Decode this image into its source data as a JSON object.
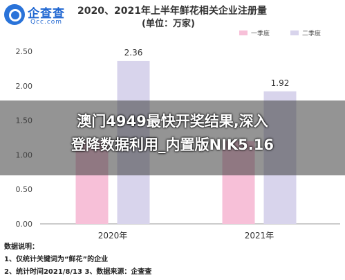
{
  "header": {
    "logo_cn": "企查查",
    "logo_en": "Qcc.com",
    "title": "2020、2021年上半年鲜花相关企业注册量",
    "subtitle": "(单位：万家)"
  },
  "chart_data": {
    "type": "bar",
    "categories": [
      "2020年",
      "2021年"
    ],
    "series": [
      {
        "name": "一季度",
        "values": [
          1.2,
          1.2
        ],
        "color": "#f7c0d8"
      },
      {
        "name": "二季度",
        "values": [
          2.36,
          1.92
        ],
        "color": "#d8d4ec"
      }
    ],
    "data_labels": [
      "2.36",
      "1.92"
    ],
    "ylim": [
      0,
      2.5
    ],
    "yticks": [
      "0.00",
      "0.50",
      "1.00",
      "1.50",
      "2.00",
      "2.50"
    ],
    "grid": false,
    "legend_position": "top-right"
  },
  "notes": {
    "heading": "数据说明：",
    "line1": "1、仅统计关键词为“鲜花”的企业",
    "line2": "2、统计时间2021/8/13   3、数据来源：企查查"
  },
  "overlay": {
    "line1": "澳门4949最快开奖结果,深入",
    "line2": "登降数据利用_内置版NIK5.16"
  }
}
